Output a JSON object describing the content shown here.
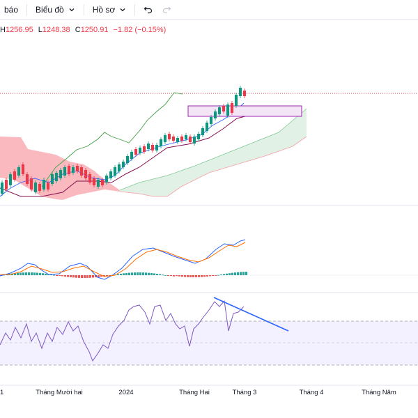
{
  "toolbar": {
    "items": [
      {
        "label": "báo",
        "icon": null
      },
      {
        "label": "Biểu đồ",
        "icon": "chevron-down-icon"
      },
      {
        "label": "Hồ sơ",
        "icon": "chevron-down-icon"
      }
    ],
    "undo_icon": "undo-icon",
    "redo_icon": "redo-icon"
  },
  "ohlc": {
    "h_label": "H",
    "h_value": "1256.95",
    "l_label": "L",
    "l_value": "1248.38",
    "c_label": "C",
    "c_value": "1250.91",
    "change": "−1.82 (−0.15%)"
  },
  "x_axis": {
    "labels": [
      "1",
      "Tháng Mười hai",
      "2024",
      "Tháng Hai",
      "Tháng 3",
      "Tháng 4",
      "Tháng Năm"
    ]
  },
  "colors": {
    "up": "#089981",
    "down": "#f23645",
    "cloud_red": "#f7a1a8",
    "cloud_green": "#cde8d6",
    "rsi_line": "#7e57c2",
    "rsi_band": "#f3f0ff",
    "macd_line": "#2962ff",
    "signal_line": "#ff6d00",
    "trendline": "#2962ff",
    "box_border": "#9c27b0",
    "box_fill": "#f3e5f5"
  }
}
